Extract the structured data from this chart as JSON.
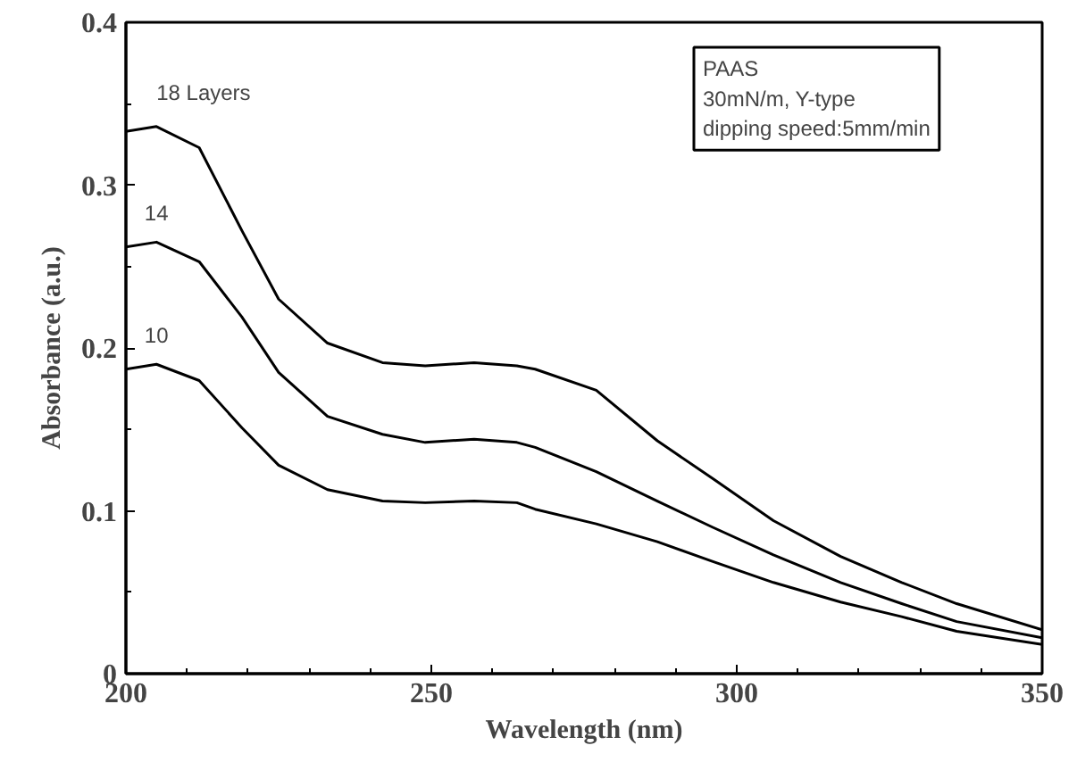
{
  "chart_data": {
    "type": "line",
    "xlabel": "Wavelength (nm)",
    "ylabel": "Absorbance (a.u.)",
    "xlim": [
      200,
      350
    ],
    "ylim": [
      0,
      0.4
    ],
    "xticks": [
      200,
      {
        "value": 210,
        "label": null
      },
      {
        "value": 220,
        "label": null
      },
      {
        "value": 230,
        "label": null
      },
      {
        "value": 240,
        "label": null
      },
      250,
      {
        "value": 260,
        "label": null
      },
      {
        "value": 270,
        "label": null
      },
      {
        "value": 280,
        "label": null
      },
      {
        "value": 290,
        "label": null
      },
      300,
      {
        "value": 310,
        "label": null
      },
      {
        "value": 320,
        "label": null
      },
      {
        "value": 330,
        "label": null
      },
      {
        "value": 340,
        "label": null
      },
      350
    ],
    "yticks": [
      0,
      {
        "value": 0.05,
        "label": null
      },
      0.1,
      {
        "value": 0.15,
        "label": null
      },
      0.2,
      {
        "value": 0.25,
        "label": null
      },
      0.3,
      {
        "value": 0.35,
        "label": null
      },
      0.4
    ],
    "grid": false,
    "marker": "none",
    "line_style": "solid",
    "x": [
      200,
      205,
      212,
      219,
      225,
      233,
      242,
      249,
      257,
      264,
      267,
      277,
      287,
      296,
      306,
      317,
      327,
      336,
      350
    ],
    "series": [
      {
        "name": "18 Layers",
        "color": "#000000",
        "values": [
          0.333,
          0.336,
          0.323,
          0.272,
          0.23,
          0.203,
          0.191,
          0.189,
          0.191,
          0.189,
          0.187,
          0.174,
          0.143,
          0.12,
          0.094,
          0.072,
          0.056,
          0.043,
          0.027
        ]
      },
      {
        "name": "14",
        "color": "#000000",
        "values": [
          0.262,
          0.265,
          0.253,
          0.219,
          0.185,
          0.158,
          0.147,
          0.142,
          0.144,
          0.142,
          0.139,
          0.124,
          0.106,
          0.09,
          0.073,
          0.056,
          0.043,
          0.032,
          0.022
        ]
      },
      {
        "name": "10",
        "color": "#000000",
        "values": [
          0.187,
          0.19,
          0.18,
          0.151,
          0.128,
          0.113,
          0.106,
          0.105,
          0.106,
          0.105,
          0.101,
          0.092,
          0.081,
          0.069,
          0.056,
          0.044,
          0.035,
          0.026,
          0.018
        ]
      }
    ],
    "annotations": [
      "PAAS\n30mN/m, Y-type\ndipping speed:5mm/min"
    ]
  }
}
